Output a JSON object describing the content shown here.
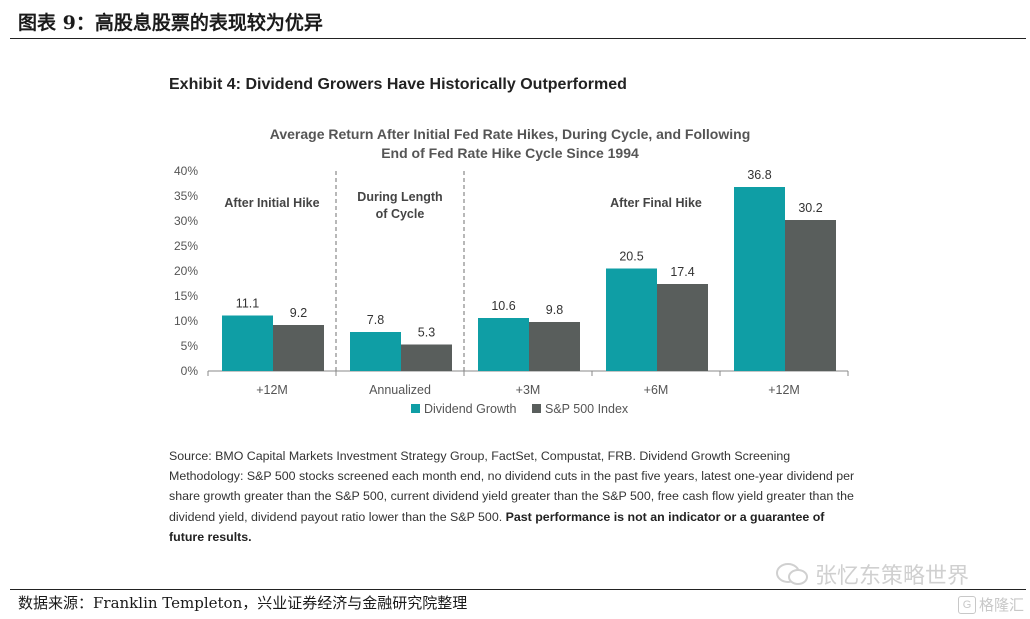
{
  "figure_title": "图表 9：高股息股票的表现较为优异",
  "exhibit_title": "Exhibit 4: Dividend Growers Have Historically Outperformed",
  "source_note_plain": "Source: BMO Capital Markets Investment Strategy Group, FactSet, Compustat, FRB. Dividend Growth Screening Methodology: S&P 500 stocks screened each month end, no dividend cuts in the past five years, latest one-year dividend per share growth greater than the S&P 500, current dividend yield greater than the S&P 500, free cash flow yield greater than the dividend yield, dividend payout ratio lower than the S&P 500.",
  "source_note_bold": "Past performance is not an indicator or a guarantee of future results.",
  "data_source": "数据来源：Franklin Templeton，兴业证券经济与金融研究院整理",
  "watermark": "张忆东策略世界",
  "watermark2": "格隆汇",
  "colors": {
    "dividend_growth": "#0f9ea5",
    "sp500": "#595e5c",
    "divider": "#888888"
  },
  "chart_data": {
    "type": "bar",
    "title_line1": "Average Return After Initial Fed Rate Hikes, During Cycle, and Following",
    "title_line2": "End of Fed Rate Hike Cycle Since 1994",
    "categories": [
      "+12M",
      "Annualized",
      "+3M",
      "+6M",
      "+12M"
    ],
    "groups": [
      {
        "label": "After Initial Hike",
        "categories": [
          0
        ]
      },
      {
        "label_line1": "During Length",
        "label_line2": "of Cycle",
        "categories": [
          1
        ]
      },
      {
        "label": "After Final Hike",
        "categories": [
          2,
          3,
          4
        ]
      }
    ],
    "series": [
      {
        "name": "Dividend Growth",
        "values": [
          11.1,
          7.8,
          10.6,
          20.5,
          36.8
        ]
      },
      {
        "name": "S&P 500 Index",
        "values": [
          9.2,
          5.3,
          9.8,
          17.4,
          30.2
        ]
      }
    ],
    "y_ticks": [
      "0%",
      "5%",
      "10%",
      "15%",
      "20%",
      "25%",
      "30%",
      "35%",
      "40%"
    ],
    "ylim": [
      0,
      40
    ],
    "legend_position": "bottom",
    "grid": false
  }
}
